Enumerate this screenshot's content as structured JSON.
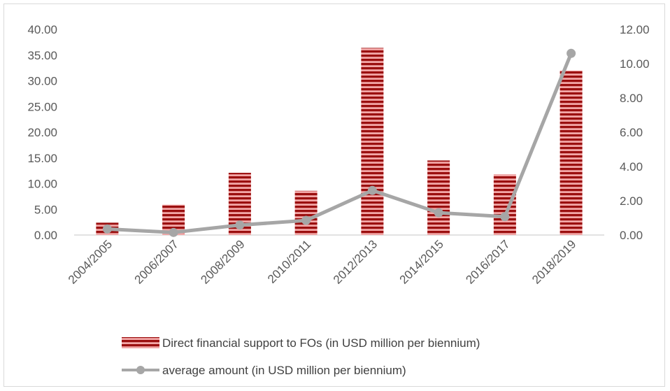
{
  "chart_data": {
    "type": "bar",
    "categories": [
      "2004/2005",
      "2006/2007",
      "2008/2009",
      "2010/2011",
      "2012/2013",
      "2014/2015",
      "2016/2017",
      "2018/2019"
    ],
    "series": [
      {
        "name": "Direct financial support to FOs (in USD million per biennium)",
        "type": "bar",
        "axis": "left",
        "values": [
          2.4,
          5.9,
          12.1,
          8.6,
          36.4,
          14.5,
          11.8,
          32.0
        ]
      },
      {
        "name": "average amount (in USD million per biennium)",
        "type": "line",
        "axis": "right",
        "values": [
          0.35,
          0.15,
          0.58,
          0.85,
          2.6,
          1.3,
          1.07,
          10.6
        ]
      }
    ],
    "y_left": {
      "min": 0,
      "max": 40,
      "step": 5,
      "ticks": [
        "0.00",
        "5.00",
        "10.00",
        "15.00",
        "20.00",
        "25.00",
        "30.00",
        "35.00",
        "40.00"
      ]
    },
    "y_right": {
      "min": 0,
      "max": 12,
      "step": 2,
      "ticks": [
        "0.00",
        "2.00",
        "4.00",
        "6.00",
        "8.00",
        "10.00",
        "12.00"
      ]
    },
    "grid": false,
    "legend_position": "bottom",
    "colors": {
      "bar_dark": "#9b0f0f",
      "bar_light": "#f2a7a7",
      "line": "#a6a6a6",
      "axis": "#d9d9d9",
      "text": "#595959"
    }
  }
}
